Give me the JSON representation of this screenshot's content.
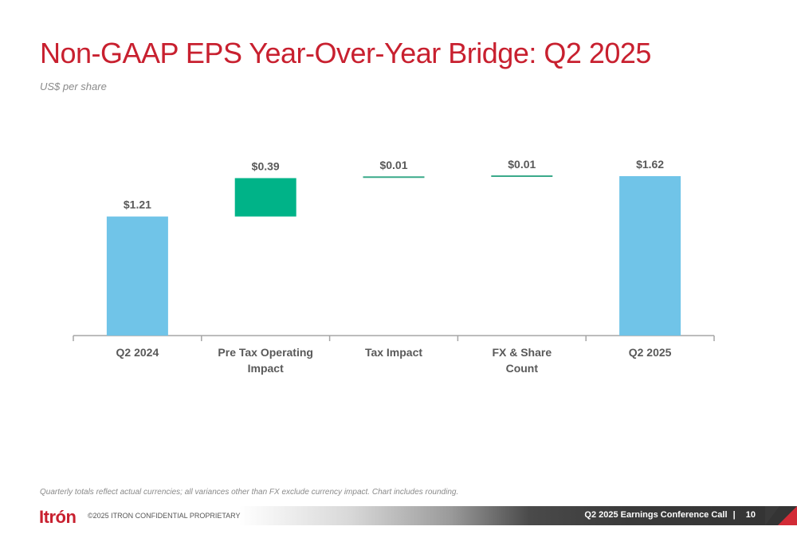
{
  "slide": {
    "title": "Non-GAAP EPS Year-Over-Year Bridge: Q2 2025",
    "subtitle": "US$ per share",
    "footnote": "Quarterly totals reflect actual currencies; all variances other than FX exclude currency impact. Chart includes rounding.",
    "logo": "Itrón",
    "copyright": "©2025  ITRON CONFIDENTIAL PROPRIETARY",
    "footer_title": "Q2 2025 Earnings Conference Call",
    "footer_separator": "|",
    "page_number": "10"
  },
  "colors": {
    "title": "#c8202f",
    "total_bar": "#70c4e8",
    "increase_bar": "#00b388",
    "increase_line": "#3aaa8a",
    "label": "#595959",
    "axis": "#a6a6a6"
  },
  "chart_data": {
    "type": "bar",
    "subtype": "waterfall",
    "title": "Non-GAAP EPS Year-Over-Year Bridge: Q2 2025",
    "ylabel": "US$ per share",
    "xlabel": "",
    "categories": [
      "Q2 2024",
      "Pre Tax Operating Impact",
      "Tax Impact",
      "FX & Share Count",
      "Q2 2025"
    ],
    "category_lines": [
      [
        "Q2 2024"
      ],
      [
        "Pre Tax Operating",
        "Impact"
      ],
      [
        "Tax Impact"
      ],
      [
        "FX & Share",
        "Count"
      ],
      [
        "Q2 2025"
      ]
    ],
    "values": [
      1.21,
      0.39,
      0.01,
      0.01,
      1.62
    ],
    "kinds": [
      "total",
      "delta",
      "delta",
      "delta",
      "total"
    ],
    "data_labels": [
      "$1.21",
      "$0.39",
      "$0.01",
      "$0.01",
      "$1.62"
    ],
    "ylim": [
      0,
      1.62
    ],
    "grid": false,
    "legend": "none"
  }
}
